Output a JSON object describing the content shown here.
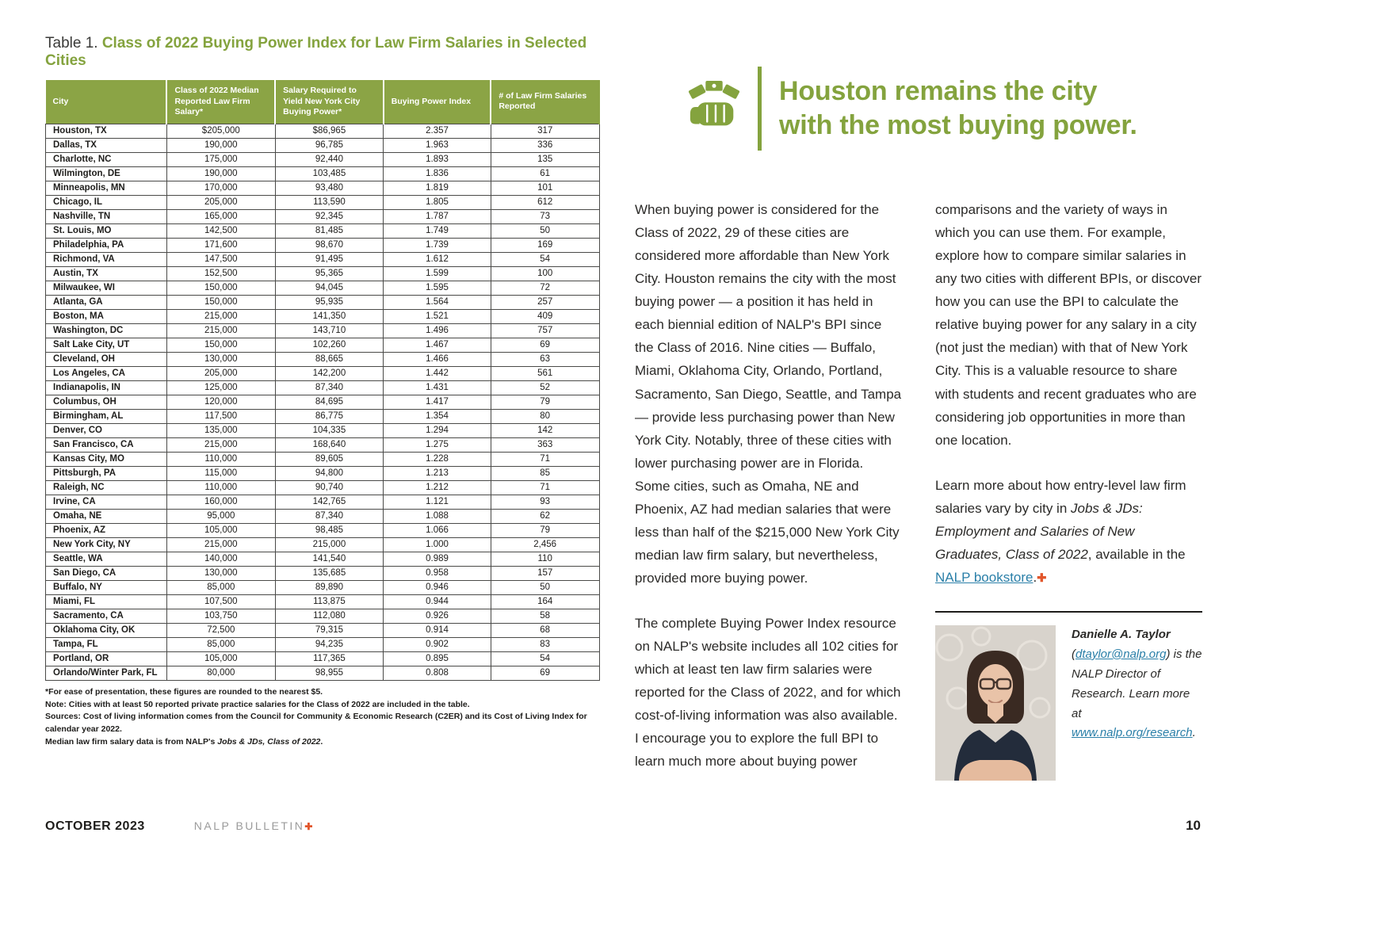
{
  "colors": {
    "accent_green": "#84a33e",
    "table_header_green": "#8ba445",
    "link_blue": "#2a7fa8",
    "plus_orange": "#e2562b"
  },
  "title": {
    "prefix": "Table 1. ",
    "text": "Class of 2022 Buying Power Index for Law Firm Salaries in Selected Cities"
  },
  "table": {
    "headers": [
      "City",
      "Class of 2022 Median Reported Law Firm Salary*",
      "Salary Required to Yield New York City Buying Power*",
      "Buying Power Index",
      "# of Law Firm Salaries Reported"
    ],
    "rows": [
      [
        "Houston, TX",
        "$205,000",
        "$86,965",
        "2.357",
        "317"
      ],
      [
        "Dallas, TX",
        "190,000",
        "96,785",
        "1.963",
        "336"
      ],
      [
        "Charlotte, NC",
        "175,000",
        "92,440",
        "1.893",
        "135"
      ],
      [
        "Wilmington, DE",
        "190,000",
        "103,485",
        "1.836",
        "61"
      ],
      [
        "Minneapolis, MN",
        "170,000",
        "93,480",
        "1.819",
        "101"
      ],
      [
        "Chicago, IL",
        "205,000",
        "113,590",
        "1.805",
        "612"
      ],
      [
        "Nashville, TN",
        "165,000",
        "92,345",
        "1.787",
        "73"
      ],
      [
        "St. Louis, MO",
        "142,500",
        "81,485",
        "1.749",
        "50"
      ],
      [
        "Philadelphia, PA",
        "171,600",
        "98,670",
        "1.739",
        "169"
      ],
      [
        "Richmond, VA",
        "147,500",
        "91,495",
        "1.612",
        "54"
      ],
      [
        "Austin, TX",
        "152,500",
        "95,365",
        "1.599",
        "100"
      ],
      [
        "Milwaukee, WI",
        "150,000",
        "94,045",
        "1.595",
        "72"
      ],
      [
        "Atlanta, GA",
        "150,000",
        "95,935",
        "1.564",
        "257"
      ],
      [
        "Boston, MA",
        "215,000",
        "141,350",
        "1.521",
        "409"
      ],
      [
        "Washington, DC",
        "215,000",
        "143,710",
        "1.496",
        "757"
      ],
      [
        "Salt Lake City, UT",
        "150,000",
        "102,260",
        "1.467",
        "69"
      ],
      [
        "Cleveland, OH",
        "130,000",
        "88,665",
        "1.466",
        "63"
      ],
      [
        "Los Angeles, CA",
        "205,000",
        "142,200",
        "1.442",
        "561"
      ],
      [
        "Indianapolis, IN",
        "125,000",
        "87,340",
        "1.431",
        "52"
      ],
      [
        "Columbus, OH",
        "120,000",
        "84,695",
        "1.417",
        "79"
      ],
      [
        "Birmingham, AL",
        "117,500",
        "86,775",
        "1.354",
        "80"
      ],
      [
        "Denver, CO",
        "135,000",
        "104,335",
        "1.294",
        "142"
      ],
      [
        "San Francisco, CA",
        "215,000",
        "168,640",
        "1.275",
        "363"
      ],
      [
        "Kansas City, MO",
        "110,000",
        "89,605",
        "1.228",
        "71"
      ],
      [
        "Pittsburgh, PA",
        "115,000",
        "94,800",
        "1.213",
        "85"
      ],
      [
        "Raleigh, NC",
        "110,000",
        "90,740",
        "1.212",
        "71"
      ],
      [
        "Irvine, CA",
        "160,000",
        "142,765",
        "1.121",
        "93"
      ],
      [
        "Omaha, NE",
        "95,000",
        "87,340",
        "1.088",
        "62"
      ],
      [
        "Phoenix, AZ",
        "105,000",
        "98,485",
        "1.066",
        "79"
      ],
      [
        "New York City, NY",
        "215,000",
        "215,000",
        "1.000",
        "2,456"
      ],
      [
        "Seattle, WA",
        "140,000",
        "141,540",
        "0.989",
        "110"
      ],
      [
        "San Diego, CA",
        "130,000",
        "135,685",
        "0.958",
        "157"
      ],
      [
        "Buffalo, NY",
        "85,000",
        "89,890",
        "0.946",
        "50"
      ],
      [
        "Miami, FL",
        "107,500",
        "113,875",
        "0.944",
        "164"
      ],
      [
        "Sacramento, CA",
        "103,750",
        "112,080",
        "0.926",
        "58"
      ],
      [
        "Oklahoma City, OK",
        "72,500",
        "79,315",
        "0.914",
        "68"
      ],
      [
        "Tampa, FL",
        "85,000",
        "94,235",
        "0.902",
        "83"
      ],
      [
        "Portland, OR",
        "105,000",
        "117,365",
        "0.895",
        "54"
      ],
      [
        "Orlando/Winter Park, FL",
        "80,000",
        "98,955",
        "0.808",
        "69"
      ]
    ]
  },
  "footnotes": [
    [
      {
        "t": "*For ease of presentation, these figures are rounded to the nearest $5.",
        "s": "n"
      }
    ],
    [
      {
        "t": "Note: Cities with at least 50 reported private practice salaries for the Class of 2022 are included in the table.",
        "s": "n"
      }
    ],
    [
      {
        "t": "Sources: Cost of living information comes from the Council for Community & Economic Research (C2ER) and its Cost of Living Index for calendar year 2022.",
        "s": "n"
      }
    ],
    [
      {
        "t": "Median law firm salary data is from NALP's ",
        "s": "n"
      },
      {
        "t": "Jobs & JDs, Class of 2022",
        "s": "i"
      },
      {
        "t": ".",
        "s": "n"
      }
    ]
  ],
  "pullquote": {
    "line1": "Houston remains the city",
    "line2": "with the most buying power."
  },
  "article": {
    "column1": [
      {
        "segments": [
          {
            "t": "When buying power is considered for the Class of 2022, 29 of these cities are considered more affordable than New York City. Houston remains the city with the most buying power — a position it has held in each biennial edition of NALP's BPI since the Class of 2016. Nine cities — Buffalo, Miami, Oklahoma City, Orlando, Portland, Sacramento, San Diego, Seattle, and Tampa — provide less purchasing power than New York City. Notably, three of these cities with lower purchasing power are in Florida. Some cities, such as Omaha, NE and Phoenix, AZ had median salaries that were less than half of the $215,000 New York City median law firm salary, but nevertheless, provided more buying power.",
            "s": "n"
          }
        ]
      },
      {
        "segments": [
          {
            "t": "The complete Buying Power Index resource on NALP's website includes all 102 cities for which at least ten law firm salaries were reported for the Class of 2022, and for which cost-of-living information was also available. I encourage you to explore the full BPI to learn much more about buying power",
            "s": "n"
          }
        ]
      }
    ],
    "column2": [
      {
        "segments": [
          {
            "t": "comparisons and the variety of ways in which you can use them. For example, explore how to compare similar salaries in any two cities with different BPIs, or discover how you can use the BPI to calculate the relative buying power for any salary in a city (not just the median) with that of New York City. This is a valuable resource to share with students and recent graduates who are considering job opportunities in more than one location.",
            "s": "n"
          }
        ]
      },
      {
        "segments": [
          {
            "t": "Learn more about how entry-level law firm salaries vary by city in ",
            "s": "n"
          },
          {
            "t": "Jobs & JDs: Employment and Salaries of New Graduates, Class of 2022",
            "s": "i"
          },
          {
            "t": ", available in the ",
            "s": "n"
          },
          {
            "t": "NALP bookstore",
            "s": "l",
            "n": "nalp-bookstore-link"
          },
          {
            "t": ".",
            "s": "n"
          },
          {
            "t": "✚",
            "s": "plus",
            "n": "nalp-plus-icon"
          }
        ]
      }
    ]
  },
  "bio": {
    "segments": [
      {
        "t": "Danielle A. Taylor",
        "s": "bi"
      },
      {
        "t": " (",
        "s": "i"
      },
      {
        "t": "dtaylor@nalp.org",
        "s": "il",
        "n": "author-email-link"
      },
      {
        "t": ") is the NALP Director of Research. Learn more at ",
        "s": "i"
      },
      {
        "t": "www.nalp.org/research",
        "s": "il",
        "n": "nalp-research-link"
      },
      {
        "t": ".",
        "s": "i"
      }
    ]
  },
  "footer": {
    "date": "OCTOBER 2023",
    "brand": "NALP BULLETIN",
    "plus": "✚",
    "page": "10"
  }
}
